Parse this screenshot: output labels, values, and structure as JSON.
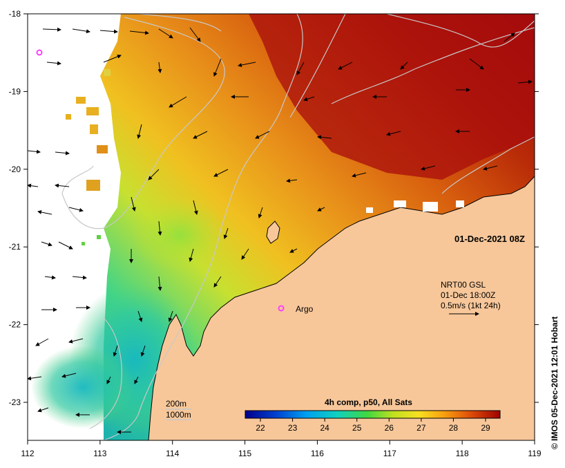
{
  "map": {
    "lon_ticks": [
      "112",
      "113",
      "114",
      "115",
      "116",
      "117",
      "118",
      "119"
    ],
    "lat_ticks": [
      "-18",
      "-19",
      "-20",
      "-21",
      "-22",
      "-23"
    ],
    "timestamp": "01-Dec-2021 08Z",
    "argo_label": "Argo",
    "current_info": {
      "line1": "NRT00 GSL",
      "line2": "01-Dec 18:00Z",
      "line3": "0.5m/s (1kt 24h)"
    },
    "isobath_labels": [
      "200m",
      "1000m"
    ],
    "colorbar": {
      "title": "4h comp, p50, All Sats",
      "ticks": [
        "22",
        "23",
        "24",
        "25",
        "26",
        "27",
        "28",
        "29"
      ]
    },
    "credit": "© IMOS 05-Dec-2021 12:01 Hobart",
    "colors": {
      "land": "#f7c79a",
      "ocean_hot": "#a00a0a",
      "ocean_warm": "#e06a12",
      "ocean_mid": "#e6c02a",
      "ocean_cool": "#2ec89a",
      "argo": "#ff40ff",
      "isobath": "#b8b8b8"
    }
  }
}
